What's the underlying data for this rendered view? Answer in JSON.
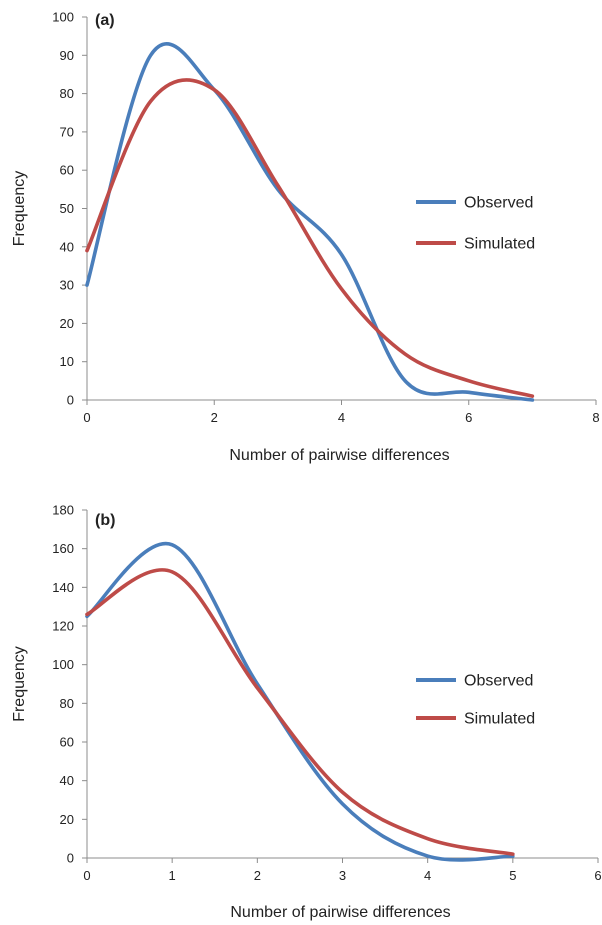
{
  "chart_data": [
    {
      "type": "line",
      "panel_label": "(a)",
      "xlabel": "Number of pairwise differences",
      "ylabel": "Frequency",
      "xlim": [
        0,
        8
      ],
      "ylim": [
        0,
        100
      ],
      "x_ticks": [
        "0",
        "2",
        "4",
        "6",
        "8"
      ],
      "y_ticks": [
        "0",
        "10",
        "20",
        "30",
        "40",
        "50",
        "60",
        "70",
        "80",
        "90",
        "100"
      ],
      "grid": false,
      "legend_position": "right",
      "series": [
        {
          "name": "Observed",
          "color": "#4a7ebb",
          "x": [
            0,
            1,
            2,
            3,
            4,
            5,
            6,
            7
          ],
          "y": [
            30,
            90,
            81,
            55,
            38,
            5,
            2,
            0
          ]
        },
        {
          "name": "Simulated",
          "color": "#be4b48",
          "x": [
            0,
            1,
            2,
            3,
            4,
            5,
            6,
            7
          ],
          "y": [
            39,
            78,
            81,
            56,
            29,
            12,
            5,
            1
          ]
        }
      ]
    },
    {
      "type": "line",
      "panel_label": "(b)",
      "xlabel": "Number of pairwise differences",
      "ylabel": "Frequency",
      "xlim": [
        0,
        6
      ],
      "ylim": [
        0,
        180
      ],
      "x_ticks": [
        "0",
        "1",
        "2",
        "3",
        "4",
        "5",
        "6"
      ],
      "y_ticks": [
        "0",
        "20",
        "40",
        "60",
        "80",
        "100",
        "120",
        "140",
        "160",
        "180"
      ],
      "grid": false,
      "legend_position": "right",
      "series": [
        {
          "name": "Observed",
          "color": "#4a7ebb",
          "x": [
            0,
            1,
            2,
            3,
            4,
            5
          ],
          "y": [
            125,
            162,
            90,
            28,
            1,
            1
          ]
        },
        {
          "name": "Simulated",
          "color": "#be4b48",
          "x": [
            0,
            1,
            2,
            3,
            4,
            5
          ],
          "y": [
            126,
            148,
            88,
            34,
            10,
            2
          ]
        }
      ]
    }
  ]
}
